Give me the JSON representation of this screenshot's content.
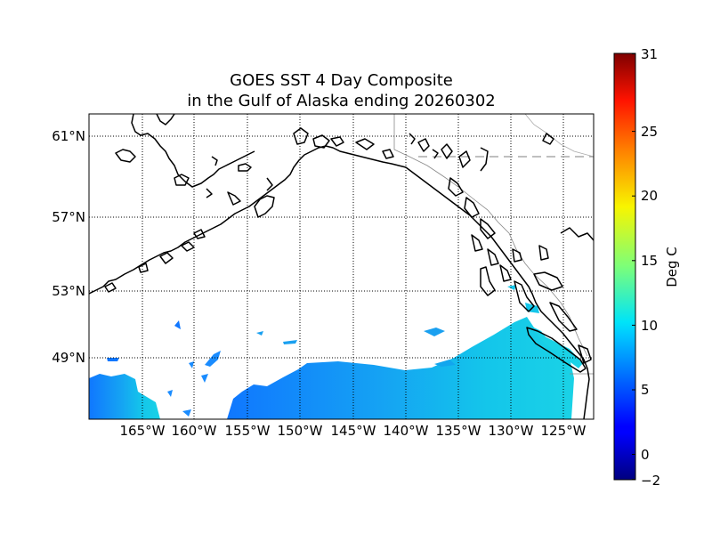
{
  "title_line1": "GOES SST 4 Day Composite",
  "title_line2": "in the Gulf of Alaska ending 20260302",
  "lat_labels": [
    "61°N",
    "57°N",
    "53°N",
    "49°N"
  ],
  "lon_labels": [
    "165°W",
    "160°W",
    "155°W",
    "150°W",
    "145°W",
    "140°W",
    "135°W",
    "130°W",
    "125°W"
  ],
  "colorbar": {
    "label": "Deg C",
    "ticks": [
      "31",
      "25",
      "20",
      "15",
      "10",
      "5",
      "0",
      "−2"
    ],
    "min": -2,
    "max": 31,
    "colormap": "jet"
  },
  "sst_field_color": "#12a6ee",
  "land_outline_color": "#000000"
}
